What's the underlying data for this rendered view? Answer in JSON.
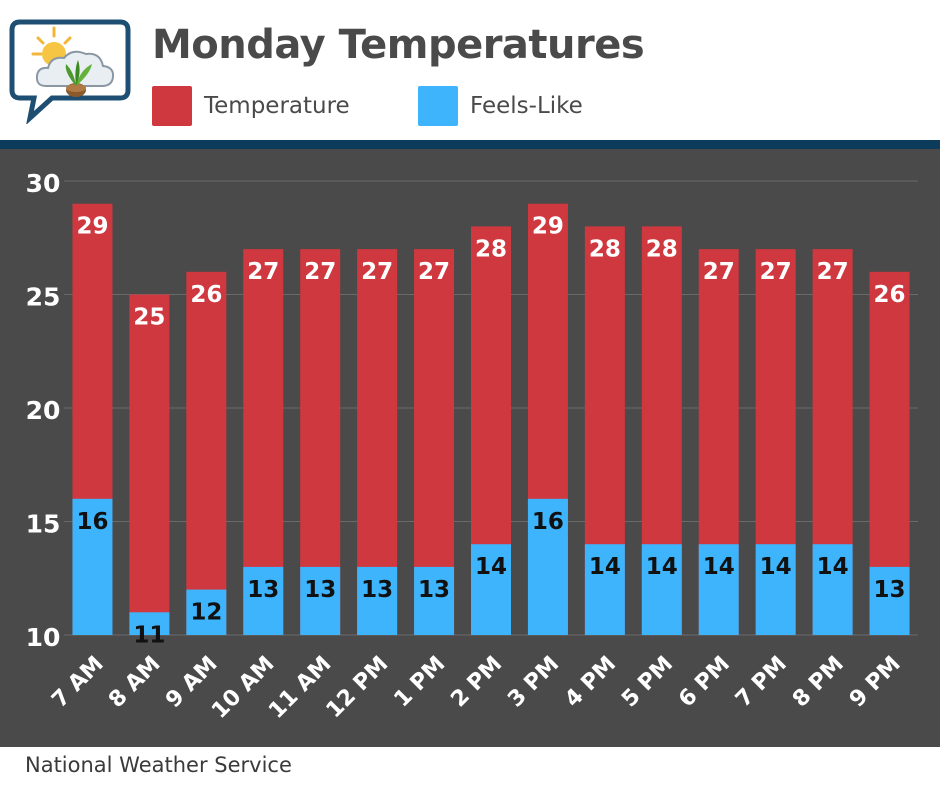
{
  "header": {
    "title": "Monday Temperatures",
    "logo_icon": "weather-sun-cloud-plant-icon"
  },
  "colors": {
    "temperature": "#d0383f",
    "feels_like": "#3db4fb",
    "plot_background": "#4a4a4a",
    "band": "#0d3b5c",
    "bar_label_temperature": "#ffffff",
    "bar_label_feels_like": "#111111",
    "axis_text": "#ffffff"
  },
  "legend": {
    "temperature_label": "Temperature",
    "feels_like_label": "Feels-Like"
  },
  "footer": {
    "source": "National Weather Service"
  },
  "chart_data": {
    "type": "bar",
    "title": "Monday Temperatures",
    "xlabel": "",
    "ylabel": "",
    "ylim": [
      10,
      30
    ],
    "yticks": [
      10,
      15,
      20,
      25,
      30
    ],
    "grid": true,
    "legend_position": "top",
    "overlay": true,
    "categories": [
      "7 AM",
      "8 AM",
      "9 AM",
      "10 AM",
      "11 AM",
      "12 PM",
      "1 PM",
      "2 PM",
      "3 PM",
      "4 PM",
      "5 PM",
      "6 PM",
      "7 PM",
      "8 PM",
      "9 PM"
    ],
    "series": [
      {
        "name": "Temperature",
        "values": [
          29,
          25,
          26,
          27,
          27,
          27,
          27,
          28,
          29,
          28,
          28,
          27,
          27,
          27,
          26
        ]
      },
      {
        "name": "Feels-Like",
        "values": [
          16,
          11,
          12,
          13,
          13,
          13,
          13,
          14,
          16,
          14,
          14,
          14,
          14,
          14,
          13
        ]
      }
    ]
  }
}
